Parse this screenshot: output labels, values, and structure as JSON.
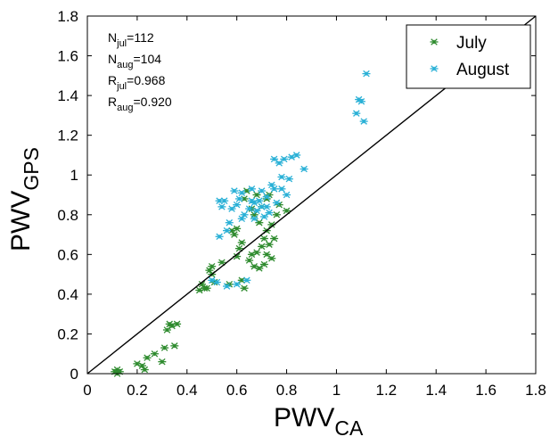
{
  "chart_data": {
    "type": "scatter",
    "title": "",
    "xlabel": {
      "main": "PWV",
      "sub": "CA"
    },
    "ylabel": {
      "main": "PWV",
      "sub": "GPS"
    },
    "xlim": [
      0,
      1.8
    ],
    "ylim": [
      0,
      1.8
    ],
    "xticks": [
      "0",
      "0.2",
      "0.4",
      "0.6",
      "0.8",
      "1",
      "1.2",
      "1.4",
      "1.6",
      "1.8"
    ],
    "yticks": [
      "0",
      "0.2",
      "0.4",
      "0.6",
      "0.8",
      "1",
      "1.2",
      "1.4",
      "1.6",
      "1.8"
    ],
    "grid": false,
    "legend_position": "top-right",
    "reference_line": {
      "type": "y=x",
      "color": "#000000"
    },
    "annotations": [
      {
        "main": "N",
        "sub": "jul",
        "value": "=112"
      },
      {
        "main": "N",
        "sub": "aug",
        "value": "=104"
      },
      {
        "main": "R",
        "sub": "jul",
        "value": "=0.968"
      },
      {
        "main": "R",
        "sub": "aug",
        "value": "=0.920"
      }
    ],
    "series": [
      {
        "name": "July",
        "marker": "asterisk",
        "color": "#2e8b2e",
        "points": [
          [
            0.11,
            0.01
          ],
          [
            0.12,
            0.0
          ],
          [
            0.12,
            0.02
          ],
          [
            0.13,
            0.01
          ],
          [
            0.2,
            0.05
          ],
          [
            0.22,
            0.04
          ],
          [
            0.23,
            0.02
          ],
          [
            0.24,
            0.08
          ],
          [
            0.27,
            0.1
          ],
          [
            0.3,
            0.06
          ],
          [
            0.31,
            0.13
          ],
          [
            0.32,
            0.22
          ],
          [
            0.33,
            0.25
          ],
          [
            0.34,
            0.24
          ],
          [
            0.35,
            0.14
          ],
          [
            0.36,
            0.25
          ],
          [
            0.45,
            0.42
          ],
          [
            0.46,
            0.45
          ],
          [
            0.47,
            0.43
          ],
          [
            0.48,
            0.43
          ],
          [
            0.49,
            0.52
          ],
          [
            0.5,
            0.5
          ],
          [
            0.5,
            0.54
          ],
          [
            0.51,
            0.46
          ],
          [
            0.54,
            0.56
          ],
          [
            0.57,
            0.45
          ],
          [
            0.58,
            0.72
          ],
          [
            0.59,
            0.7
          ],
          [
            0.6,
            0.59
          ],
          [
            0.6,
            0.73
          ],
          [
            0.61,
            0.63
          ],
          [
            0.62,
            0.47
          ],
          [
            0.62,
            0.66
          ],
          [
            0.63,
            0.43
          ],
          [
            0.63,
            0.88
          ],
          [
            0.64,
            0.92
          ],
          [
            0.65,
            0.57
          ],
          [
            0.66,
            0.6
          ],
          [
            0.66,
            0.83
          ],
          [
            0.67,
            0.54
          ],
          [
            0.67,
            0.8
          ],
          [
            0.68,
            0.61
          ],
          [
            0.68,
            0.9
          ],
          [
            0.69,
            0.53
          ],
          [
            0.69,
            0.76
          ],
          [
            0.7,
            0.64
          ],
          [
            0.7,
            0.84
          ],
          [
            0.71,
            0.55
          ],
          [
            0.71,
            0.68
          ],
          [
            0.72,
            0.6
          ],
          [
            0.72,
            0.72
          ],
          [
            0.72,
            0.88
          ],
          [
            0.73,
            0.65
          ],
          [
            0.73,
            0.9
          ],
          [
            0.74,
            0.58
          ],
          [
            0.74,
            0.75
          ],
          [
            0.75,
            0.68
          ],
          [
            0.76,
            0.8
          ],
          [
            0.77,
            0.85
          ],
          [
            0.8,
            0.82
          ]
        ]
      },
      {
        "name": "August",
        "marker": "asterisk",
        "color": "#29b0d6",
        "points": [
          [
            0.5,
            0.47
          ],
          [
            0.52,
            0.46
          ],
          [
            0.53,
            0.69
          ],
          [
            0.53,
            0.87
          ],
          [
            0.54,
            0.84
          ],
          [
            0.55,
            0.87
          ],
          [
            0.56,
            0.72
          ],
          [
            0.56,
            0.44
          ],
          [
            0.57,
            0.76
          ],
          [
            0.58,
            0.83
          ],
          [
            0.59,
            0.92
          ],
          [
            0.6,
            0.45
          ],
          [
            0.6,
            0.85
          ],
          [
            0.61,
            0.88
          ],
          [
            0.62,
            0.78
          ],
          [
            0.62,
            0.91
          ],
          [
            0.63,
            0.8
          ],
          [
            0.64,
            0.47
          ],
          [
            0.65,
            0.83
          ],
          [
            0.66,
            0.87
          ],
          [
            0.66,
            0.93
          ],
          [
            0.67,
            0.78
          ],
          [
            0.67,
            0.86
          ],
          [
            0.68,
            0.82
          ],
          [
            0.69,
            0.87
          ],
          [
            0.7,
            0.84
          ],
          [
            0.7,
            0.92
          ],
          [
            0.71,
            0.79
          ],
          [
            0.72,
            0.89
          ],
          [
            0.72,
            0.84
          ],
          [
            0.73,
            0.81
          ],
          [
            0.74,
            0.95
          ],
          [
            0.75,
            1.08
          ],
          [
            0.75,
            0.93
          ],
          [
            0.76,
            0.86
          ],
          [
            0.77,
            1.06
          ],
          [
            0.78,
            0.99
          ],
          [
            0.78,
            0.93
          ],
          [
            0.79,
            1.08
          ],
          [
            0.8,
            0.9
          ],
          [
            0.81,
            0.98
          ],
          [
            0.82,
            1.09
          ],
          [
            0.84,
            1.1
          ],
          [
            0.87,
            1.03
          ],
          [
            1.08,
            1.31
          ],
          [
            1.09,
            1.38
          ],
          [
            1.1,
            1.37
          ],
          [
            1.11,
            1.27
          ],
          [
            1.12,
            1.51
          ]
        ]
      }
    ]
  }
}
